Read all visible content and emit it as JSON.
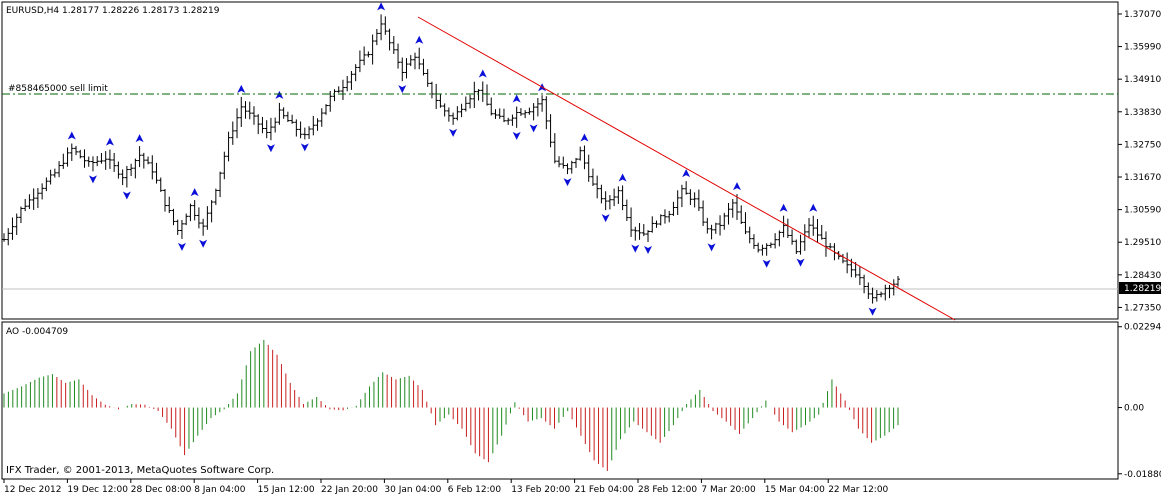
{
  "header": {
    "symbol_info": "EURUSD,H4  1.28177 1.28226 1.28173 1.28219"
  },
  "order_line": {
    "label": "#858465000 sell limit",
    "price": 1.3455
  },
  "current_price_label": "1.28219",
  "indicator": {
    "label": "AO -0.004709"
  },
  "copyright": "IFX Trader, © 2001-2013, MetaQuotes Software Corp.",
  "colors": {
    "candle": "#000000",
    "fractal": "#0a10d8",
    "trendline": "#e00000",
    "order_line": "#006400",
    "ao_up": "#1f8a1f",
    "ao_down": "#c81e1e",
    "price_box": "#000000"
  },
  "chart_data": [
    {
      "type": "candlestick",
      "title": "EURUSD,H4",
      "ylim": [
        1.27,
        1.374
      ],
      "y_ticks": [
        "1.37070",
        "1.35990",
        "1.34910",
        "1.33830",
        "1.32750",
        "1.31670",
        "1.30590",
        "1.29510",
        "1.28430",
        "1.27350"
      ],
      "x_ticks": [
        "12 Dec 2012",
        "19 Dec 12:00",
        "28 Dec 08:00",
        "8 Jan 04:00",
        "15 Jan 12:00",
        "22 Jan 20:00",
        "30 Jan 04:00",
        "6 Feb 12:00",
        "13 Feb 20:00",
        "21 Feb 04:00",
        "28 Feb 12:00",
        "7 Mar 20:00",
        "15 Mar 04:00",
        "22 Mar 12:00"
      ],
      "last_close": 1.28219,
      "close_path": [
        [
          0,
          1.296
        ],
        [
          4,
          1.306
        ],
        [
          8,
          1.312
        ],
        [
          12,
          1.318
        ],
        [
          16,
          1.326
        ],
        [
          20,
          1.321
        ],
        [
          24,
          1.323
        ],
        [
          28,
          1.317
        ],
        [
          32,
          1.324
        ],
        [
          35,
          1.319
        ],
        [
          38,
          1.308
        ],
        [
          41,
          1.299
        ],
        [
          44,
          1.307
        ],
        [
          47,
          1.3
        ],
        [
          50,
          1.313
        ],
        [
          53,
          1.329
        ],
        [
          56,
          1.34
        ],
        [
          59,
          1.336
        ],
        [
          62,
          1.331
        ],
        [
          65,
          1.338
        ],
        [
          68,
          1.334
        ],
        [
          71,
          1.33
        ],
        [
          74,
          1.336
        ],
        [
          77,
          1.343
        ],
        [
          80,
          1.347
        ],
        [
          83,
          1.353
        ],
        [
          86,
          1.358
        ],
        [
          89,
          1.368
        ],
        [
          91,
          1.361
        ],
        [
          94,
          1.352
        ],
        [
          97,
          1.357
        ],
        [
          100,
          1.347
        ],
        [
          103,
          1.34
        ],
        [
          106,
          1.336
        ],
        [
          109,
          1.342
        ],
        [
          112,
          1.346
        ],
        [
          115,
          1.338
        ],
        [
          118,
          1.335
        ],
        [
          121,
          1.338
        ],
        [
          124,
          1.339
        ],
        [
          127,
          1.342
        ],
        [
          130,
          1.322
        ],
        [
          133,
          1.319
        ],
        [
          136,
          1.325
        ],
        [
          139,
          1.314
        ],
        [
          142,
          1.308
        ],
        [
          145,
          1.312
        ],
        [
          148,
          1.3
        ],
        [
          151,
          1.298
        ],
        [
          154,
          1.302
        ],
        [
          157,
          1.305
        ],
        [
          160,
          1.312
        ],
        [
          163,
          1.309
        ],
        [
          166,
          1.299
        ],
        [
          169,
          1.301
        ],
        [
          172,
          1.308
        ],
        [
          175,
          1.298
        ],
        [
          178,
          1.293
        ],
        [
          181,
          1.295
        ],
        [
          184,
          1.3
        ],
        [
          187,
          1.292
        ],
        [
          190,
          1.301
        ],
        [
          193,
          1.296
        ],
        [
          196,
          1.291
        ],
        [
          199,
          1.287
        ],
        [
          202,
          1.284
        ],
        [
          205,
          1.276
        ],
        [
          208,
          1.28
        ],
        [
          211,
          1.2822
        ]
      ]
    },
    {
      "type": "bar",
      "title": "AO",
      "ylim": [
        -0.02,
        0.024
      ],
      "y_ticks": [
        "0.022945",
        "0.00",
        "-0.01880"
      ],
      "value_path": [
        [
          0,
          0.004
        ],
        [
          4,
          0.006
        ],
        [
          8,
          0.0085
        ],
        [
          11,
          0.0095
        ],
        [
          14,
          0.007
        ],
        [
          17,
          0.008
        ],
        [
          20,
          0.0035
        ],
        [
          23,
          0.0008
        ],
        [
          26,
          -0.0005
        ],
        [
          29,
          0.001
        ],
        [
          32,
          0.0008
        ],
        [
          35,
          -0.001
        ],
        [
          38,
          -0.006
        ],
        [
          41,
          -0.0135
        ],
        [
          44,
          -0.008
        ],
        [
          47,
          -0.003
        ],
        [
          50,
          -0.0005
        ],
        [
          53,
          0.004
        ],
        [
          56,
          0.016
        ],
        [
          59,
          0.0192
        ],
        [
          62,
          0.015
        ],
        [
          65,
          0.007
        ],
        [
          68,
          0.001
        ],
        [
          71,
          0.003
        ],
        [
          74,
          -0.0005
        ],
        [
          77,
          -0.0008
        ],
        [
          80,
          0.0005
        ],
        [
          83,
          0.006
        ],
        [
          86,
          0.01
        ],
        [
          89,
          0.008
        ],
        [
          92,
          0.009
        ],
        [
          95,
          0.005
        ],
        [
          98,
          -0.005
        ],
        [
          101,
          -0.002
        ],
        [
          104,
          -0.006
        ],
        [
          107,
          -0.013
        ],
        [
          110,
          -0.0155
        ],
        [
          113,
          -0.008
        ],
        [
          116,
          0.0015
        ],
        [
          119,
          -0.004
        ],
        [
          122,
          -0.003
        ],
        [
          125,
          -0.006
        ],
        [
          128,
          -0.001
        ],
        [
          131,
          -0.008
        ],
        [
          134,
          -0.015
        ],
        [
          137,
          -0.018
        ],
        [
          140,
          -0.009
        ],
        [
          143,
          -0.004
        ],
        [
          146,
          -0.007
        ],
        [
          149,
          -0.01
        ],
        [
          152,
          -0.005
        ],
        [
          155,
          0.001
        ],
        [
          158,
          0.005
        ],
        [
          161,
          -0.001
        ],
        [
          164,
          -0.004
        ],
        [
          167,
          -0.0075
        ],
        [
          170,
          -0.003
        ],
        [
          173,
          0.002
        ],
        [
          176,
          -0.004
        ],
        [
          179,
          -0.007
        ],
        [
          182,
          -0.005
        ],
        [
          185,
          -0.002
        ],
        [
          188,
          0.008
        ],
        [
          191,
          0.002
        ],
        [
          194,
          -0.006
        ],
        [
          197,
          -0.01
        ],
        [
          200,
          -0.008
        ],
        [
          203,
          -0.005
        ]
      ]
    }
  ]
}
